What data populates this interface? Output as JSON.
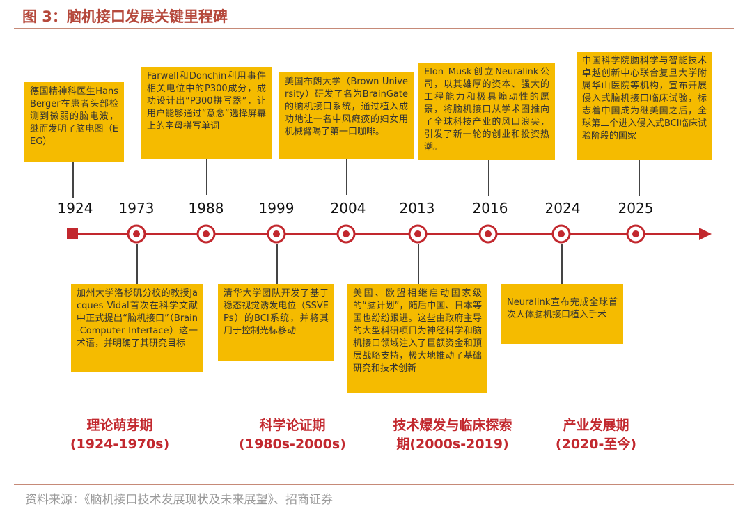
{
  "title": "图 3：脑机接口发展关键里程碑",
  "source": "资料来源：《脑机接口技术发展现状及未来展望》、招商证券",
  "colors": {
    "box": "#f5bb00",
    "accent": "#c2282e",
    "title": "#b5483b"
  },
  "milestones": [
    {
      "year": "1924",
      "text": "德国精神科医生Hans Berger在患者头部检测到微弱的脑电波，继而发明了脑电图（EEG）"
    },
    {
      "year": "1973",
      "text": "加州大学洛杉矶分校的教授Jacques Vidal首次在科学文献中正式提出“脑机接口”（Brain-Computer Interface）这一术语，并明确了其研究目标"
    },
    {
      "year": "1988",
      "text": "Farwell和Donchin利用事件相关电位中的P300成分，成功设计出“P300拼写器”，让用户能够通过“意念”选择屏幕上的字母拼写单词"
    },
    {
      "year": "1999",
      "text": "清华大学团队开发了基于稳态视觉诱发电位（SSVEPs）的BCI系统，并将其用于控制光标移动"
    },
    {
      "year": "2004",
      "text": "美国布朗大学（Brown University）研发了名为BrainGate的脑机接口系统，通过植入成功地让一名中风瘫痪的妇女用机械臂喝了第一口咖啡。"
    },
    {
      "year": "2013",
      "text": "美国、欧盟相继启动国家级的“脑计划”，随后中国、日本等国也纷纷跟进。这些由政府主导的大型科研项目为神经科学和脑机接口领域注入了巨额资金和顶层战略支持，极大地推动了基础研究和技术创新"
    },
    {
      "year": "2016",
      "text": "Elon Musk创立Neuralink公司，以其雄厚的资本、强大的工程能力和极具煽动性的愿景，将脑机接口从学术圈推向了全球科技产业的风口浪尖，引发了新一轮的创业和投资热潮。"
    },
    {
      "year": "2024",
      "text": "Neuralink宣布完成全球首次人体脑机接口植入手术"
    },
    {
      "year": "2025",
      "text": "中国科学院脑科学与智能技术卓越创新中心联合复旦大学附属华山医院等机构，宣布开展侵入式脑机接口临床试验，标志着中国成为继美国之后，全球第二个进入侵入式BCI临床试验阶段的国家"
    }
  ],
  "phases": [
    {
      "name": "理论萌芽期",
      "period": "(1924-1970s)"
    },
    {
      "name": "科学论证期",
      "period": "(1980s-2000s)"
    },
    {
      "name": "技术爆发与临床探索",
      "period": "期(2000s-2019)"
    },
    {
      "name": "产业发展期",
      "period": "(2020-至今)"
    }
  ]
}
